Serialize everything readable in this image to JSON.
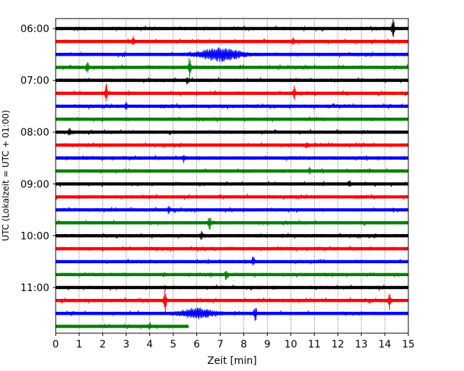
{
  "chart_data": {
    "type": "line",
    "xlabel": "Zeit  [min]",
    "ylabel": "UTC (Lokalzeit = UTC + 01:00)",
    "xlim": [
      0,
      15
    ],
    "x_ticks": [
      0,
      1,
      2,
      3,
      4,
      5,
      6,
      7,
      8,
      9,
      10,
      11,
      12,
      13,
      14,
      15
    ],
    "y_tick_labels": [
      "06:00",
      "07:00",
      "08:00",
      "09:00",
      "10:00",
      "11:00"
    ],
    "grid": "vertical dotted",
    "trace_interval_minutes": 15,
    "colors": [
      "#000000",
      "#ff0000",
      "#0000ff",
      "#008000"
    ],
    "traces": [
      {
        "start": "06:00",
        "color": "#000000",
        "end_min": 15,
        "events": [
          {
            "t": 14.35,
            "amp": 16
          }
        ]
      },
      {
        "start": "06:15",
        "color": "#ff0000",
        "end_min": 15,
        "events": [
          {
            "t": 3.3,
            "amp": 6
          },
          {
            "t": 10.1,
            "amp": 4
          }
        ]
      },
      {
        "start": "06:30",
        "color": "#0000ff",
        "end_min": 15,
        "events": [
          {
            "t": 7.0,
            "amp": 8,
            "width": 1.2
          }
        ]
      },
      {
        "start": "06:45",
        "color": "#008000",
        "end_min": 15,
        "events": [
          {
            "t": 1.35,
            "amp": 8
          },
          {
            "t": 5.7,
            "amp": 14
          }
        ]
      },
      {
        "start": "07:00",
        "color": "#000000",
        "end_min": 15,
        "events": [
          {
            "t": 5.6,
            "amp": 5
          }
        ]
      },
      {
        "start": "07:15",
        "color": "#ff0000",
        "end_min": 15,
        "events": [
          {
            "t": 2.15,
            "amp": 14
          },
          {
            "t": 10.15,
            "amp": 10
          }
        ]
      },
      {
        "start": "07:30",
        "color": "#0000ff",
        "end_min": 15,
        "events": [
          {
            "t": 3.0,
            "amp": 4
          }
        ]
      },
      {
        "start": "07:45",
        "color": "#008000",
        "end_min": 15,
        "events": []
      },
      {
        "start": "08:00",
        "color": "#000000",
        "end_min": 15,
        "events": [
          {
            "t": 0.6,
            "amp": 4
          }
        ]
      },
      {
        "start": "08:15",
        "color": "#ff0000",
        "end_min": 15,
        "events": [
          {
            "t": 10.7,
            "amp": 4
          }
        ]
      },
      {
        "start": "08:30",
        "color": "#0000ff",
        "end_min": 15,
        "events": [
          {
            "t": 5.45,
            "amp": 5
          }
        ]
      },
      {
        "start": "08:45",
        "color": "#008000",
        "end_min": 15,
        "events": [
          {
            "t": 10.8,
            "amp": 4
          }
        ]
      },
      {
        "start": "09:00",
        "color": "#000000",
        "end_min": 15,
        "events": [
          {
            "t": 12.5,
            "amp": 4
          }
        ]
      },
      {
        "start": "09:15",
        "color": "#ff0000",
        "end_min": 15,
        "events": []
      },
      {
        "start": "09:30",
        "color": "#0000ff",
        "end_min": 15,
        "events": [
          {
            "t": 4.8,
            "amp": 4
          }
        ]
      },
      {
        "start": "09:45",
        "color": "#008000",
        "end_min": 15,
        "events": [
          {
            "t": 6.55,
            "amp": 9
          }
        ]
      },
      {
        "start": "10:00",
        "color": "#000000",
        "end_min": 15,
        "events": [
          {
            "t": 6.2,
            "amp": 6
          }
        ]
      },
      {
        "start": "10:15",
        "color": "#ff0000",
        "end_min": 15,
        "events": []
      },
      {
        "start": "10:30",
        "color": "#0000ff",
        "end_min": 15,
        "events": [
          {
            "t": 8.4,
            "amp": 7
          }
        ]
      },
      {
        "start": "10:45",
        "color": "#008000",
        "end_min": 15,
        "events": [
          {
            "t": 7.25,
            "amp": 7
          }
        ]
      },
      {
        "start": "11:00",
        "color": "#000000",
        "end_min": 15,
        "events": []
      },
      {
        "start": "11:15",
        "color": "#ff0000",
        "end_min": 15,
        "events": [
          {
            "t": 4.65,
            "amp": 16
          },
          {
            "t": 14.2,
            "amp": 10
          }
        ]
      },
      {
        "start": "11:30",
        "color": "#0000ff",
        "end_min": 15,
        "events": [
          {
            "t": 6.0,
            "amp": 6,
            "width": 1.0
          },
          {
            "t": 8.5,
            "amp": 10
          }
        ]
      },
      {
        "start": "11:45",
        "color": "#008000",
        "end_min": 5.65,
        "events": [
          {
            "t": 4.0,
            "amp": 4
          }
        ]
      }
    ]
  }
}
